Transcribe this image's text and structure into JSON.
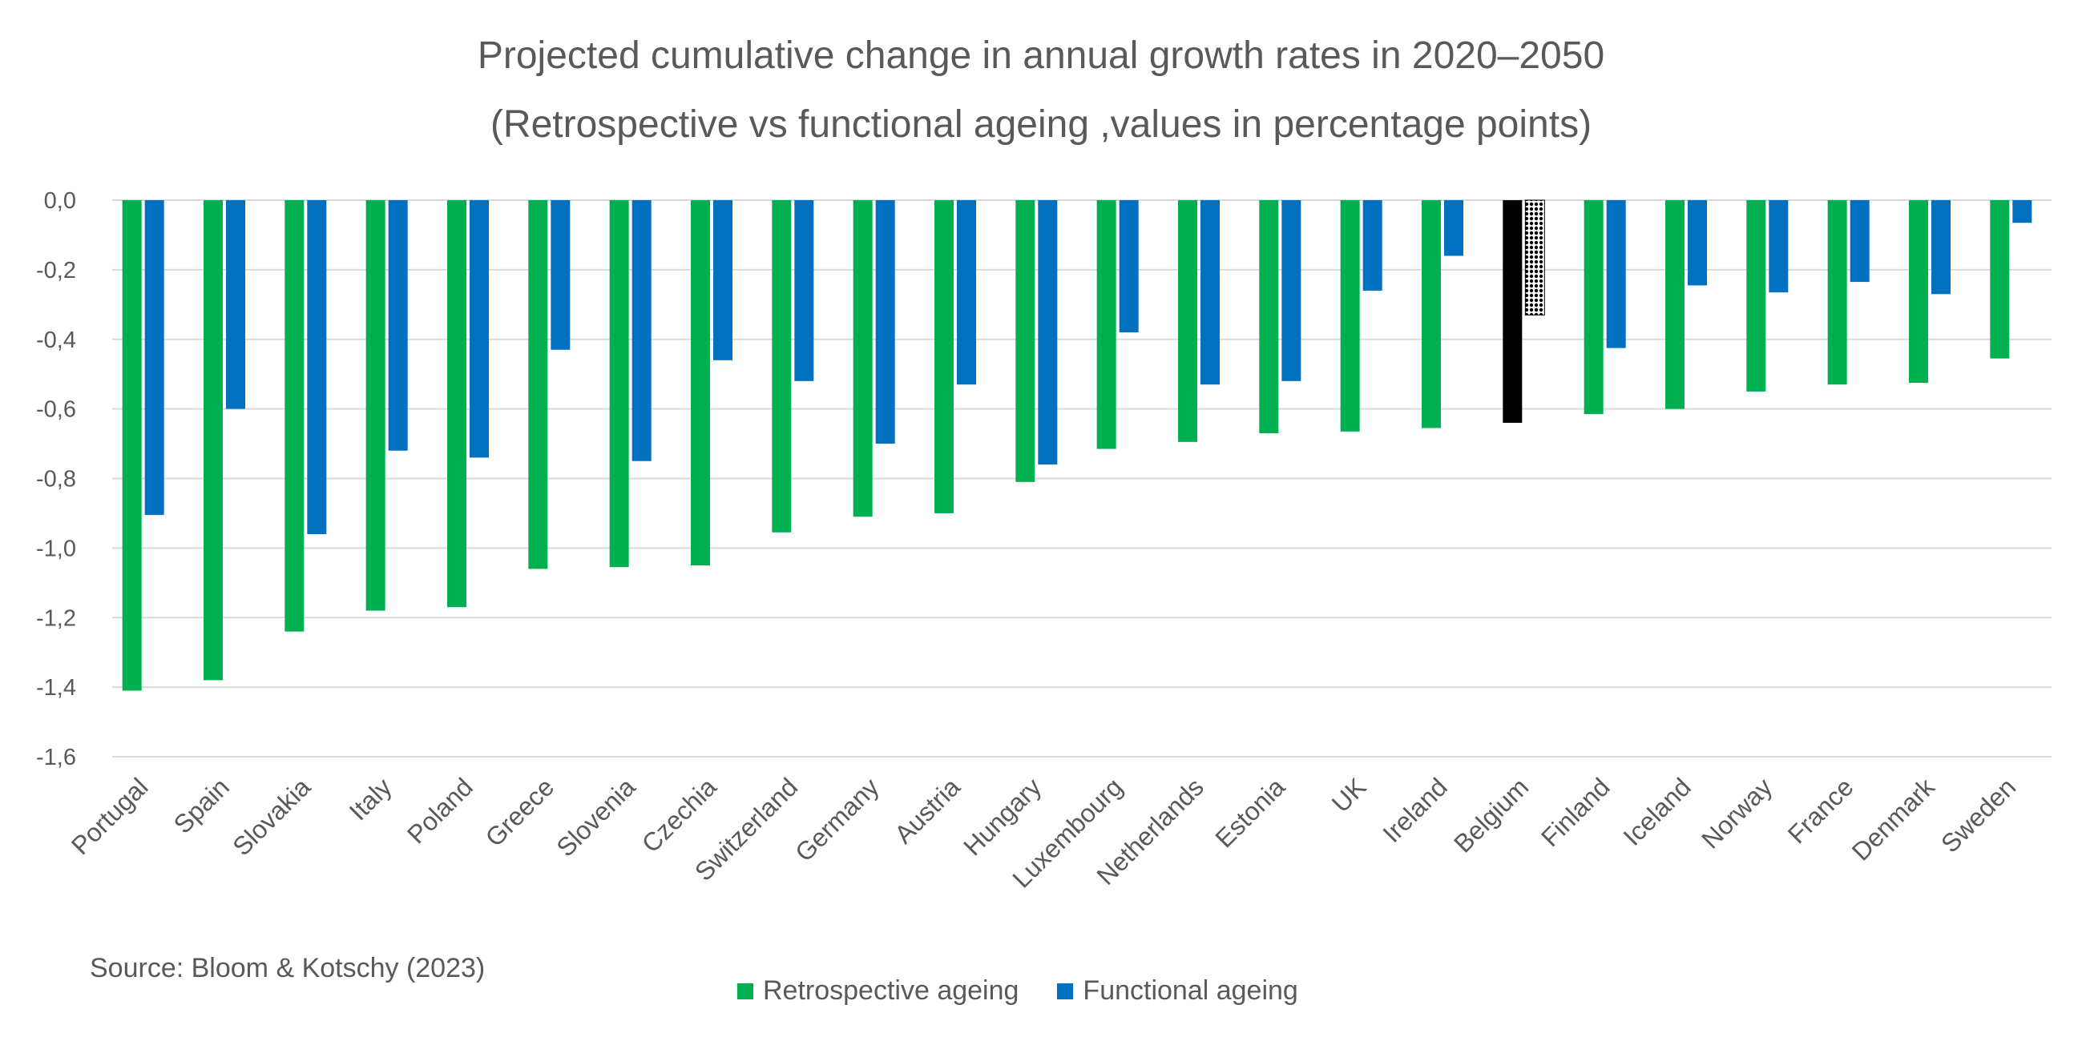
{
  "chart_data": {
    "type": "bar",
    "title": "Projected cumulative change in annual growth rates in 2020–2050",
    "subtitle": "(Retrospective vs functional ageing ,values in percentage points)",
    "categories": [
      "Portugal",
      "Spain",
      "Slovakia",
      "Italy",
      "Poland",
      "Greece",
      "Slovenia",
      "Czechia",
      "Switzerland",
      "Germany",
      "Austria",
      "Hungary",
      "Luxembourg",
      "Netherlands",
      "Estonia",
      "UK",
      "Ireland",
      "Belgium",
      "Finland",
      "Iceland",
      "Norway",
      "France",
      "Denmark",
      "Sweden"
    ],
    "series": [
      {
        "name": "Retrospective ageing",
        "color": "#00B050",
        "values": [
          -1.41,
          -1.38,
          -1.24,
          -1.18,
          -1.17,
          -1.06,
          -1.055,
          -1.05,
          -0.955,
          -0.91,
          -0.9,
          -0.81,
          -0.715,
          -0.695,
          -0.67,
          -0.665,
          -0.655,
          -0.64,
          -0.615,
          -0.6,
          -0.55,
          -0.53,
          -0.525,
          -0.455
        ]
      },
      {
        "name": "Functional ageing",
        "color": "#0070C0",
        "values": [
          -0.905,
          -0.6,
          -0.96,
          -0.72,
          -0.74,
          -0.43,
          -0.75,
          -0.46,
          -0.52,
          -0.7,
          -0.53,
          -0.76,
          -0.38,
          -0.53,
          -0.52,
          -0.26,
          -0.16,
          -0.33,
          -0.425,
          -0.245,
          -0.265,
          -0.235,
          -0.27,
          -0.065
        ]
      }
    ],
    "highlight": {
      "category": "Belgium",
      "retrospective_color": "#000000",
      "functional_pattern": "black-dotted"
    },
    "ylim": [
      -1.6,
      0
    ],
    "yticks": [
      "0,0",
      "-0,2",
      "-0,4",
      "-0,6",
      "-0,8",
      "-1,0",
      "-1,2",
      "-1,4",
      "-1,6"
    ],
    "grid": true,
    "legend_position": "bottom-center"
  },
  "source": "Source: Bloom & Kotschy (2023)"
}
